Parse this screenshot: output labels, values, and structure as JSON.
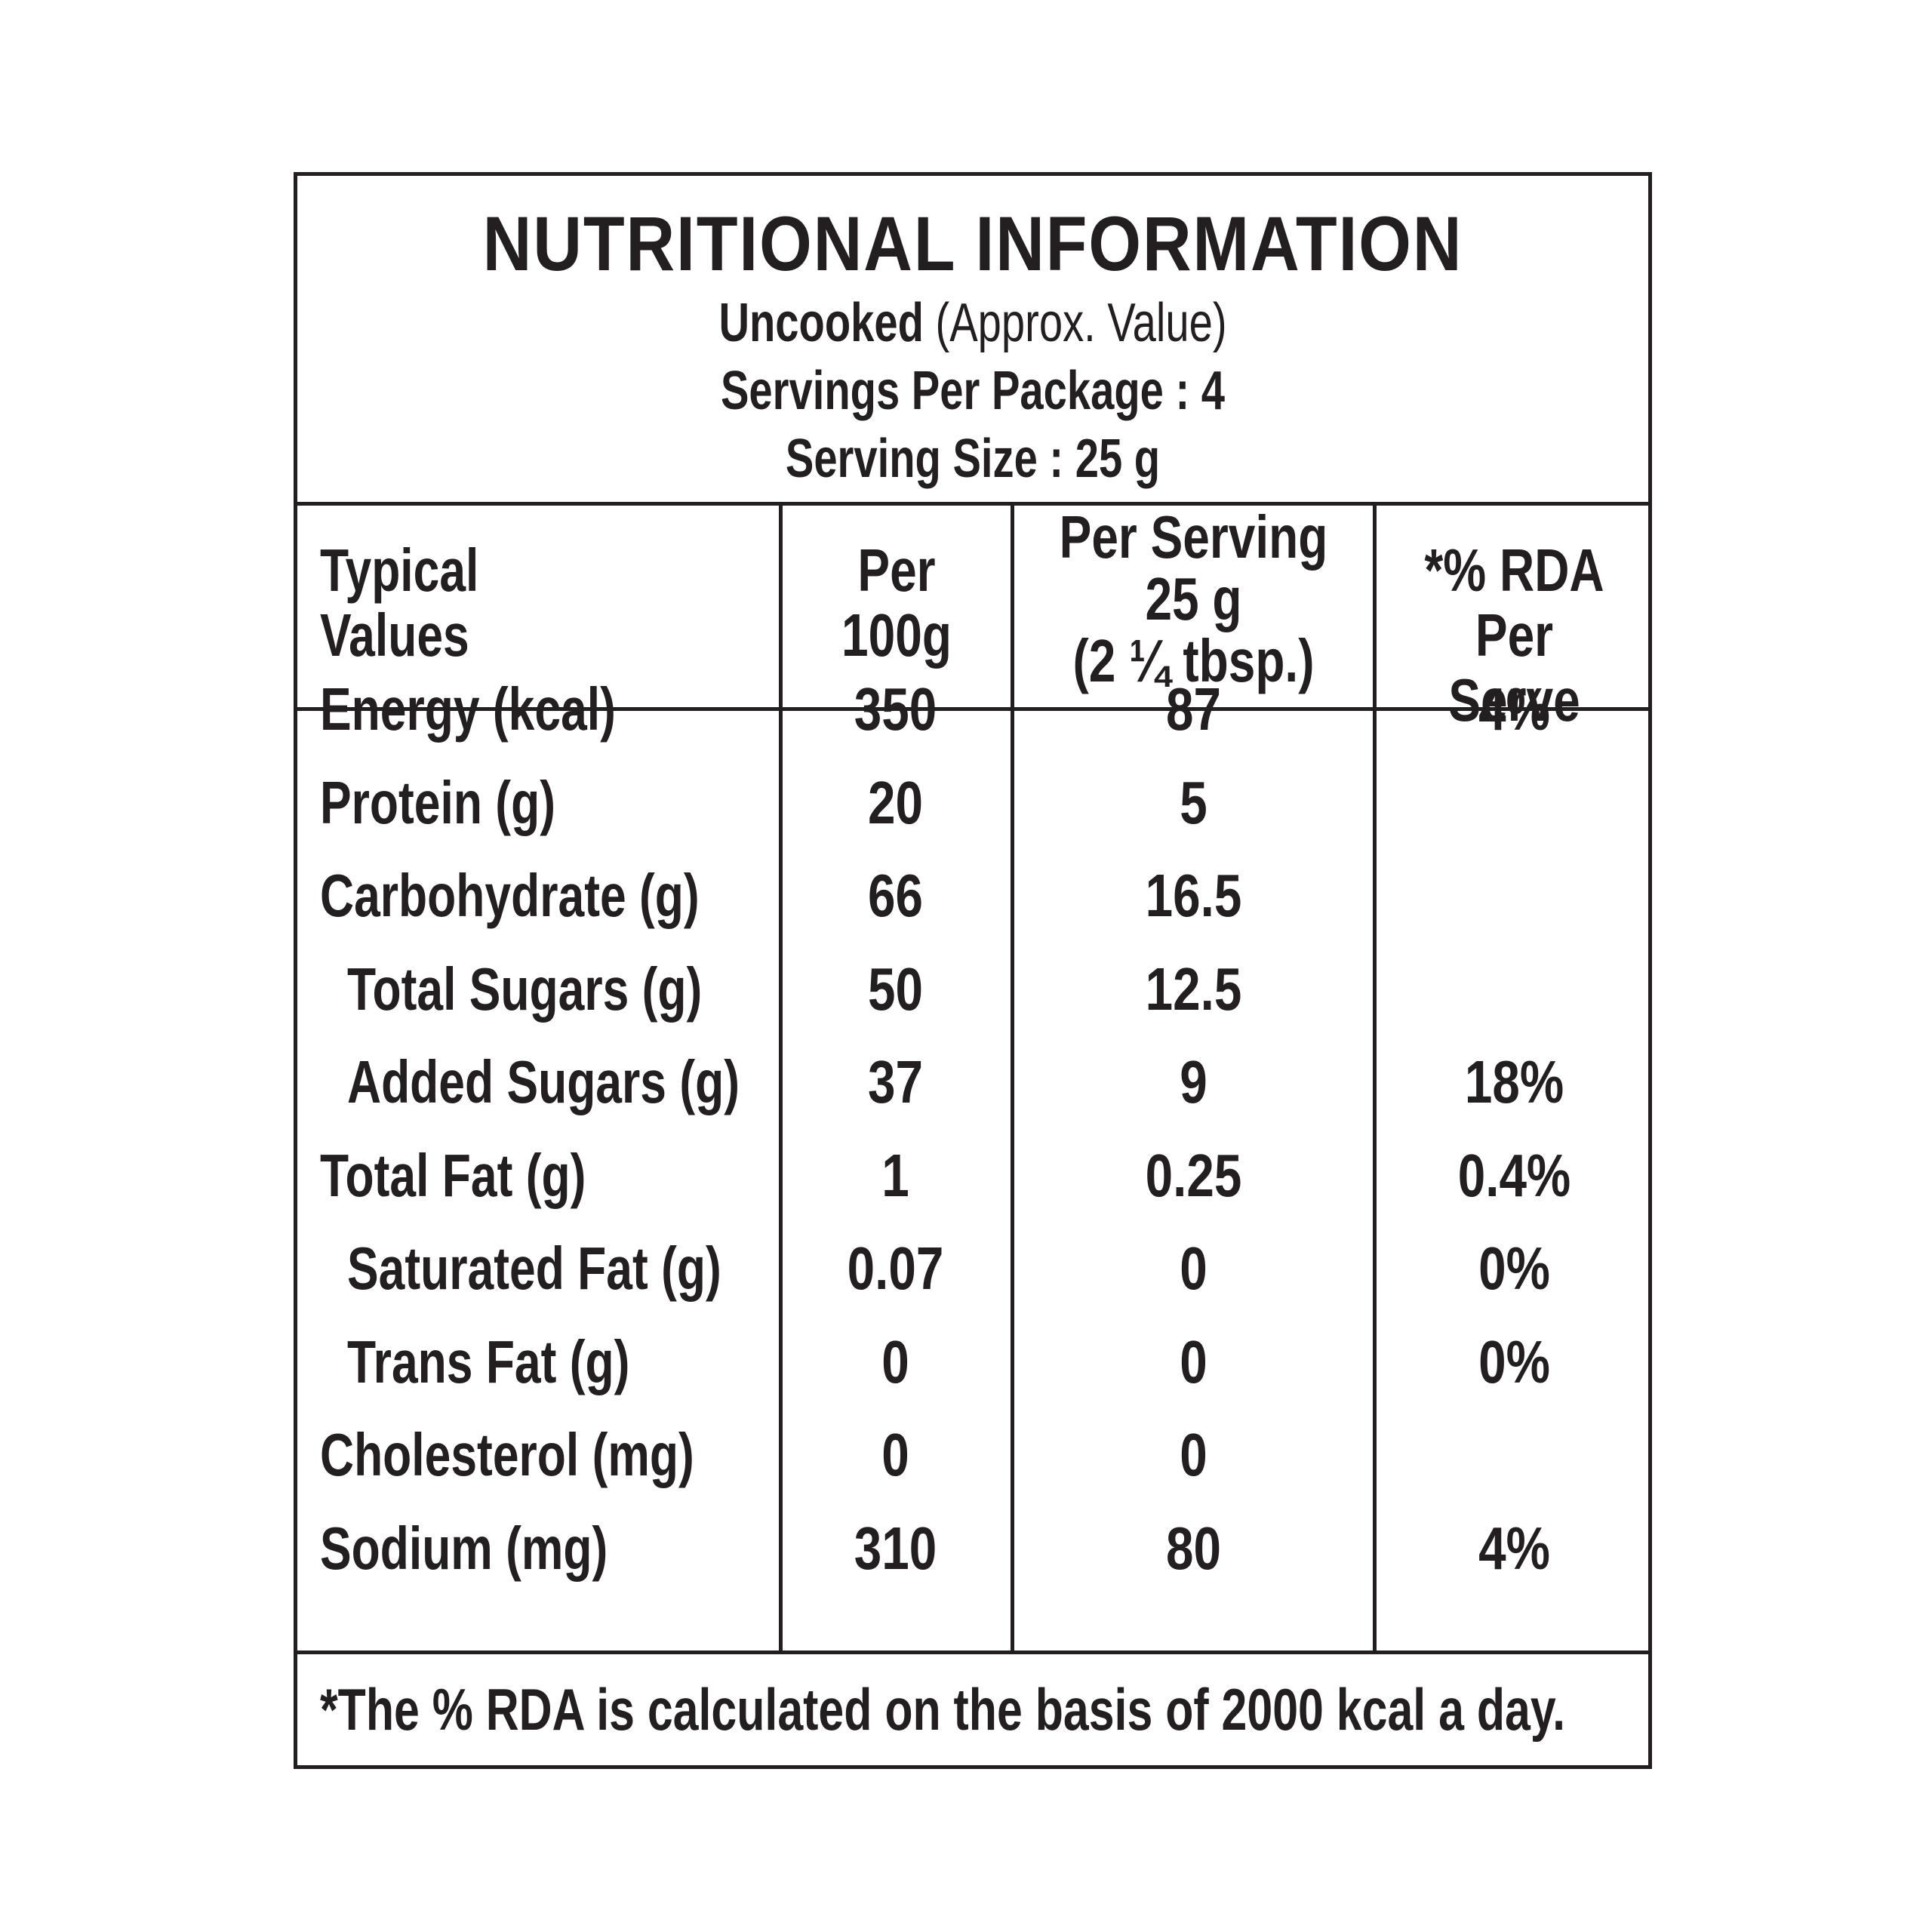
{
  "label": {
    "title": "NUTRITIONAL INFORMATION",
    "subtitle_bold": "Uncooked",
    "subtitle_rest": " (Approx. Value)",
    "servings_per_package": "Servings Per Package : 4",
    "serving_size": "Serving Size : 25 g"
  },
  "columns": {
    "typical_values": [
      "Typical",
      "Values"
    ],
    "per_100g": [
      "Per",
      "100g"
    ],
    "per_serving": [
      "Per Serving",
      "25 g",
      "(2 ¼ tbsp.)"
    ],
    "rda": [
      "*% RDA",
      "Per Serve"
    ]
  },
  "rows": [
    {
      "name": "Energy (kcal)",
      "per100": "350",
      "perserving": "87",
      "rda": "4%",
      "indent": false
    },
    {
      "name": "Protein (g)",
      "per100": "20",
      "perserving": "5",
      "rda": "",
      "indent": false
    },
    {
      "name": "Carbohydrate (g)",
      "per100": "66",
      "perserving": "16.5",
      "rda": "",
      "indent": false
    },
    {
      "name": "Total Sugars (g)",
      "per100": "50",
      "perserving": "12.5",
      "rda": "",
      "indent": true
    },
    {
      "name": "Added Sugars (g)",
      "per100": "37",
      "perserving": "9",
      "rda": "18%",
      "indent": true
    },
    {
      "name": "Total Fat (g)",
      "per100": "1",
      "perserving": "0.25",
      "rda": "0.4%",
      "indent": false
    },
    {
      "name": "Saturated Fat (g)",
      "per100": "0.07",
      "perserving": "0",
      "rda": "0%",
      "indent": true
    },
    {
      "name": "Trans Fat (g)",
      "per100": "0",
      "perserving": "0",
      "rda": "0%",
      "indent": true
    },
    {
      "name": "Cholesterol (mg)",
      "per100": "0",
      "perserving": "0",
      "rda": "",
      "indent": false
    },
    {
      "name": "Sodium (mg)",
      "per100": "310",
      "perserving": "80",
      "rda": "4%",
      "indent": false
    }
  ],
  "footnote": "*The % RDA is calculated on the basis of 2000 kcal a day."
}
